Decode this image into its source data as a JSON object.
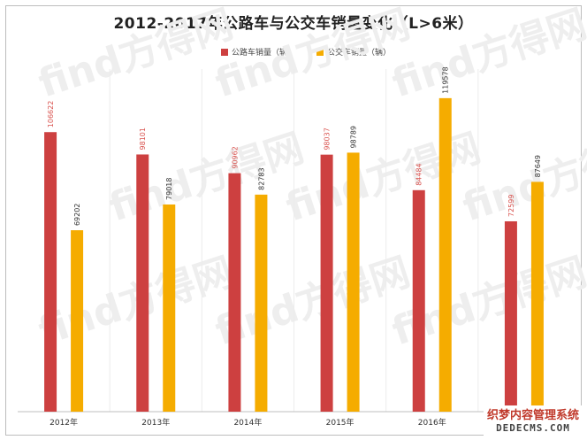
{
  "chart_data": {
    "type": "bar",
    "title": "2012-2017年公路车与公交车销量变化（L>6米）",
    "categories": [
      "2012年",
      "2013年",
      "2014年",
      "2015年",
      "2016年",
      "2017年"
    ],
    "series": [
      {
        "name": "公路车销量（辆）",
        "color": "#cd4040",
        "values": [
          106622,
          98101,
          90962,
          98037,
          84484,
          72599
        ]
      },
      {
        "name": "公交车销量（辆）",
        "color": "#f5ac00",
        "values": [
          69202,
          79018,
          82783,
          98789,
          119578,
          87649
        ]
      }
    ],
    "ylim": [
      0,
      130000
    ],
    "grid": false,
    "legend_position": "top-center"
  },
  "overlay": {
    "site_name_cn": "织梦内容管理系统",
    "site_name_en": "DEDECMS.COM"
  },
  "watermark_text": "find方得网"
}
